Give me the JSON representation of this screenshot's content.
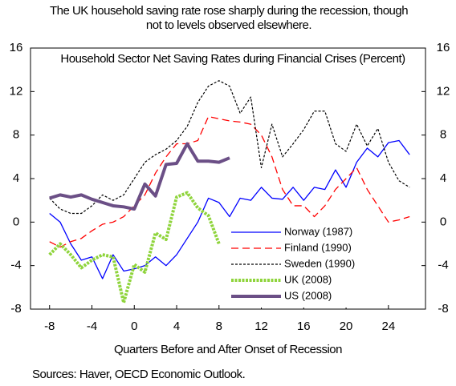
{
  "chart_data": {
    "type": "line",
    "title": "The UK household saving rate rose sharply during the recession, though not to levels observed elsewhere.",
    "subtitle": "Household Sector Net Saving Rates during Financial Crises (Percent)",
    "x_label": "Quarters Before and After Onset of Recession",
    "source": "Sources: Haver, OECD Economic Outlook.",
    "x": [
      -8,
      -7,
      -6,
      -5,
      -4,
      -3,
      -2,
      -1,
      0,
      1,
      2,
      3,
      4,
      5,
      6,
      7,
      8,
      9,
      10,
      11,
      12,
      13,
      14,
      15,
      16,
      17,
      18,
      19,
      20,
      21,
      22,
      23,
      24,
      25,
      26
    ],
    "xlim": [
      -9.8,
      27.5
    ],
    "xticks": [
      -8,
      -4,
      0,
      4,
      8,
      12,
      16,
      20,
      24
    ],
    "ylim": [
      -8,
      16
    ],
    "yticks": [
      -8,
      -4,
      0,
      4,
      8,
      12,
      16
    ],
    "y2lim": [
      -8,
      16
    ],
    "y2ticks": [
      -8,
      -4,
      0,
      4,
      8,
      12,
      16
    ],
    "legend": "lower-right",
    "series": [
      {
        "name": "Norway (1987)",
        "color": "#0000ff",
        "dash": "solid",
        "width": 1.3,
        "values": [
          0.8,
          0,
          -2,
          -3.5,
          -3.2,
          -5.2,
          -3,
          -4.5,
          -4.3,
          -4,
          -3.2,
          -4,
          -3,
          -1.5,
          0,
          2.2,
          1.8,
          0.5,
          2.2,
          2,
          3.2,
          2.2,
          2.1,
          3.2,
          2,
          3.2,
          3,
          4.8,
          3.2,
          5.5,
          6.8,
          6,
          7.3,
          7.5,
          6.2
        ]
      },
      {
        "name": "Finland (1990)",
        "color": "#ff0000",
        "dash": "dashed",
        "width": 1.3,
        "values": [
          -1.8,
          -2.3,
          -1.8,
          -1.5,
          -0.8,
          -0.2,
          0,
          0.5,
          1.5,
          2.5,
          4.5,
          6,
          7.2,
          7.2,
          7.5,
          9.7,
          9.5,
          9.3,
          9.2,
          9,
          8,
          6,
          3,
          1.5,
          1.5,
          0.5,
          1.5,
          3,
          4,
          5,
          3,
          1.5,
          0,
          0.2,
          0.5
        ]
      },
      {
        "name": "Sweden (1990)",
        "color": "#000000",
        "dash": "dotted",
        "width": 1.2,
        "values": [
          2.2,
          1.2,
          0.8,
          0.8,
          1.5,
          2.5,
          2,
          2.5,
          4,
          5.5,
          6.2,
          6.7,
          7.5,
          8.8,
          11,
          12.5,
          13,
          12.5,
          10,
          11.5,
          5,
          9,
          6,
          7.2,
          8.5,
          10.2,
          10.2,
          7.2,
          6.5,
          9,
          7,
          8.6,
          5.5,
          3.8,
          3.2
        ]
      },
      {
        "name": "UK (2008)",
        "color": "#8fd43c",
        "dash": "thick-dotted",
        "width": 4,
        "values": [
          -3,
          -2,
          -3,
          -4.2,
          -3.5,
          -3,
          -3.2,
          -7.4,
          -3.9,
          -4.6,
          -1,
          -1.6,
          2.3,
          2.7,
          1.3,
          0.6,
          -2,
          null,
          null,
          null,
          null,
          null,
          null,
          null,
          null,
          null,
          null,
          null,
          null,
          null,
          null,
          null,
          null,
          null,
          null
        ]
      },
      {
        "name": "US (2008)",
        "color": "#6b4f86",
        "dash": "solid",
        "width": 4,
        "values": [
          2.2,
          2.5,
          2.3,
          2.5,
          2.1,
          1.8,
          1.5,
          1.4,
          1.2,
          3.5,
          2.4,
          5.3,
          5.4,
          7.2,
          5.6,
          5.6,
          5.5,
          5.9,
          null,
          null,
          null,
          null,
          null,
          null,
          null,
          null,
          null,
          null,
          null,
          null,
          null,
          null,
          null,
          null,
          null
        ]
      }
    ]
  }
}
